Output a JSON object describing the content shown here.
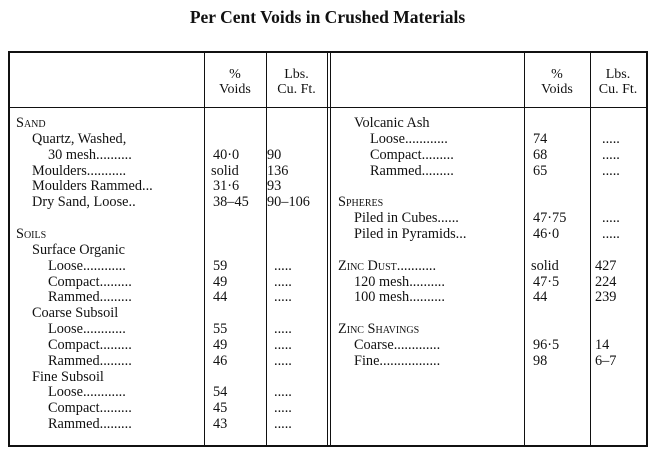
{
  "title": "Per Cent Voids in Crushed Materials",
  "headers": {
    "voids": "%\nVoids",
    "lbs": "Lbs.\nCu. Ft."
  },
  "left": [
    {
      "label": "Sand",
      "type": "section"
    },
    {
      "label": "Quartz, Washed,",
      "indent": 1
    },
    {
      "label": "30 mesh..........",
      "indent": 2,
      "voids": "40·0",
      "lbs": "90"
    },
    {
      "label": "Moulders...........",
      "indent": 1,
      "voids": "solid",
      "lbs": "136"
    },
    {
      "label": "Moulders Rammed...",
      "indent": 1,
      "voids": "31·6",
      "lbs": "93"
    },
    {
      "label": "Dry Sand, Loose..",
      "indent": 1,
      "voids": "38–45",
      "lbs": "90–106"
    },
    {
      "label": "",
      "type": "blank"
    },
    {
      "label": "Soils",
      "type": "section"
    },
    {
      "label": "Surface Organic",
      "indent": 1
    },
    {
      "label": "Loose............",
      "indent": 2,
      "voids": "59",
      "lbs": "....."
    },
    {
      "label": "Compact.........",
      "indent": 2,
      "voids": "49",
      "lbs": "....."
    },
    {
      "label": "Rammed.........",
      "indent": 2,
      "voids": "44",
      "lbs": "....."
    },
    {
      "label": "Coarse Subsoil",
      "indent": 1
    },
    {
      "label": "Loose............",
      "indent": 2,
      "voids": "55",
      "lbs": "....."
    },
    {
      "label": "Compact.........",
      "indent": 2,
      "voids": "49",
      "lbs": "....."
    },
    {
      "label": "Rammed.........",
      "indent": 2,
      "voids": "46",
      "lbs": "....."
    },
    {
      "label": "Fine Subsoil",
      "indent": 1
    },
    {
      "label": "Loose............",
      "indent": 2,
      "voids": "54",
      "lbs": "....."
    },
    {
      "label": "Compact.........",
      "indent": 2,
      "voids": "45",
      "lbs": "....."
    },
    {
      "label": "Rammed.........",
      "indent": 2,
      "voids": "43",
      "lbs": "....."
    }
  ],
  "right": [
    {
      "label": "Volcanic Ash",
      "indent": 1
    },
    {
      "label": "Loose............",
      "indent": 2,
      "voids": "74",
      "lbs": "....."
    },
    {
      "label": "Compact.........",
      "indent": 2,
      "voids": "68",
      "lbs": "....."
    },
    {
      "label": "Rammed.........",
      "indent": 2,
      "voids": "65",
      "lbs": "....."
    },
    {
      "label": "",
      "type": "blank"
    },
    {
      "label": "Spheres",
      "type": "section"
    },
    {
      "label": "Piled in Cubes......",
      "indent": 1,
      "voids": "47·75",
      "lbs": "....."
    },
    {
      "label": "Piled in Pyramids...",
      "indent": 1,
      "voids": "46·0",
      "lbs": "....."
    },
    {
      "label": "",
      "type": "blank"
    },
    {
      "label": "Zinc Dust...........",
      "type": "section",
      "voids": "solid",
      "lbs": "427"
    },
    {
      "label": "120 mesh..........",
      "indent": 1,
      "voids": "47·5",
      "lbs": "224"
    },
    {
      "label": "100 mesh..........",
      "indent": 1,
      "voids": "44",
      "lbs": "239"
    },
    {
      "label": "",
      "type": "blank"
    },
    {
      "label": "Zinc Shavings",
      "type": "section"
    },
    {
      "label": "Coarse.............",
      "indent": 1,
      "voids": "96·5",
      "lbs": "14"
    },
    {
      "label": "Fine.................",
      "indent": 1,
      "voids": "98",
      "lbs": "6–7"
    }
  ]
}
